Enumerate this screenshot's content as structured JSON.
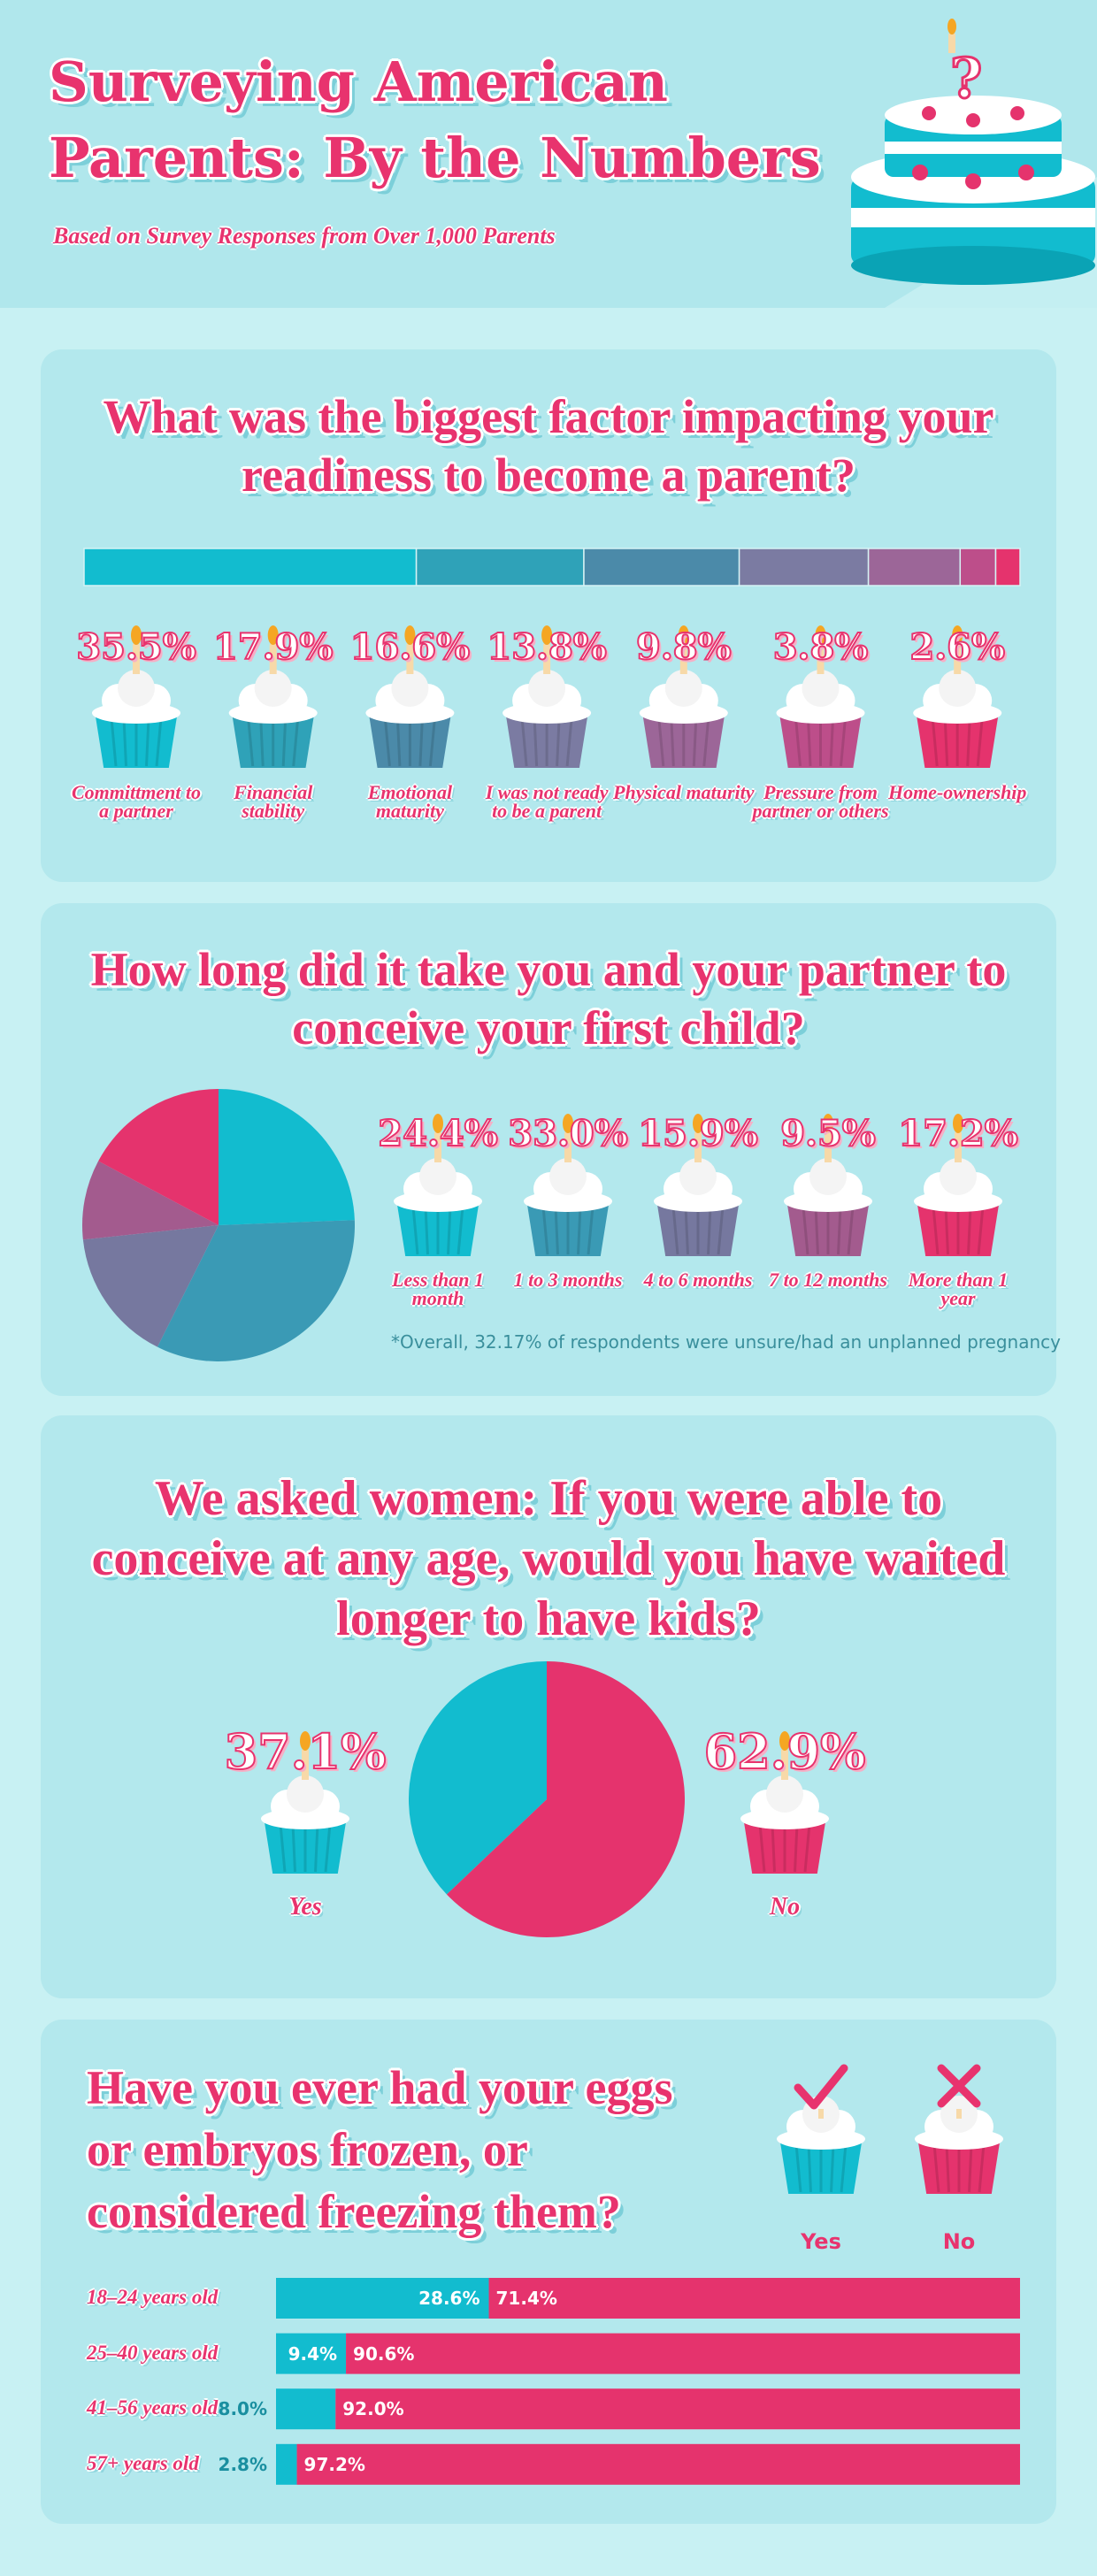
{
  "header": {
    "title": "Surveying American Parents: By the Numbers",
    "subtitle": "Based on Survey Responses from Over 1,000 Parents"
  },
  "chart_data": [
    {
      "type": "stacked-bar",
      "title": "What was the biggest factor impacting your readiness to become a parent?",
      "categories": [
        "Committment to a partner",
        "Financial stability",
        "Emotional maturity",
        "I was not ready to be a parent",
        "Physical maturity",
        "Pressure from partner or others",
        "Home-ownership"
      ],
      "values": [
        35.5,
        17.9,
        16.6,
        13.8,
        9.8,
        3.8,
        2.6
      ],
      "value_labels": [
        "35.5%",
        "17.9%",
        "16.6%",
        "13.8%",
        "9.8%",
        "3.8%",
        "2.6%"
      ],
      "colors": [
        "#12bccf",
        "#2fa2b8",
        "#4b8aa9",
        "#7b7ba2",
        "#9c6698",
        "#bd4e8a",
        "#e5336d"
      ],
      "xlim": [
        0,
        100
      ]
    },
    {
      "type": "pie",
      "title": "How long did it take you and your partner to conceive your first child?",
      "categories": [
        "Less than 1 month",
        "1 to 3 months",
        "4 to 6 months",
        "7 to 12 months",
        "More than 1 year"
      ],
      "values": [
        24.4,
        33.0,
        15.9,
        9.5,
        17.2
      ],
      "value_labels": [
        "24.4%",
        "33.0%",
        "15.9%",
        "9.5%",
        "17.2%"
      ],
      "colors": [
        "#12bccf",
        "#3a9ab5",
        "#76789f",
        "#a35b8e",
        "#e5336d"
      ],
      "direction": "clockwise",
      "note": "*Overall, 32.17% of respondents were unsure/had an unplanned pregnancy"
    },
    {
      "type": "pie",
      "title": "We asked women: If you were able to conceive at any age, would you have waited longer to have kids?",
      "categories": [
        "Yes",
        "No"
      ],
      "values": [
        37.1,
        62.9
      ],
      "value_labels": [
        "37.1%",
        "62.9%"
      ],
      "colors": [
        "#12bccf",
        "#e5336d"
      ],
      "direction": "counterclockwise"
    },
    {
      "type": "stacked-bar",
      "title": "Have you ever had your eggs or embryos frozen, or considered freezing them?",
      "categories": [
        "18–24 years old",
        "25–40 years old",
        "41–56 years old",
        "57+ years old"
      ],
      "series": [
        {
          "name": "Yes",
          "color": "#12bccf",
          "values": [
            28.6,
            9.4,
            8.0,
            2.8
          ],
          "value_labels": [
            "28.6%",
            "9.4%",
            "8.0%",
            "2.8%"
          ]
        },
        {
          "name": "No",
          "color": "#e5336d",
          "values": [
            71.4,
            90.6,
            92.0,
            97.2
          ],
          "value_labels": [
            "71.4%",
            "90.6%",
            "92.0%",
            "97.2%"
          ]
        }
      ],
      "xlim": [
        0,
        100
      ]
    }
  ]
}
